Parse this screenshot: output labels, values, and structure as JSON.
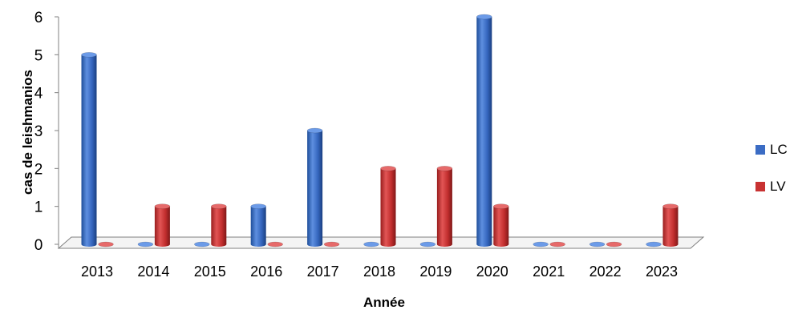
{
  "chart_data": {
    "type": "bar",
    "style": "3d-cylinder",
    "xlabel": "Année",
    "ylabel": "cas de leishmanios",
    "ylim": [
      0,
      6
    ],
    "yticks": [
      0,
      1,
      2,
      3,
      4,
      5,
      6
    ],
    "grid": false,
    "legend_position": "right",
    "categories": [
      "2013",
      "2014",
      "2015",
      "2016",
      "2017",
      "2018",
      "2019",
      "2020",
      "2021",
      "2022",
      "2023"
    ],
    "series": [
      {
        "name": "LC",
        "color": "#3B6CC4",
        "values": [
          5,
          0,
          0,
          1,
          3,
          0,
          0,
          6,
          0,
          0,
          0
        ]
      },
      {
        "name": "LV",
        "color": "#C83232",
        "values": [
          0,
          1,
          1,
          0,
          0,
          2,
          2,
          1,
          0,
          0,
          1
        ]
      }
    ]
  }
}
